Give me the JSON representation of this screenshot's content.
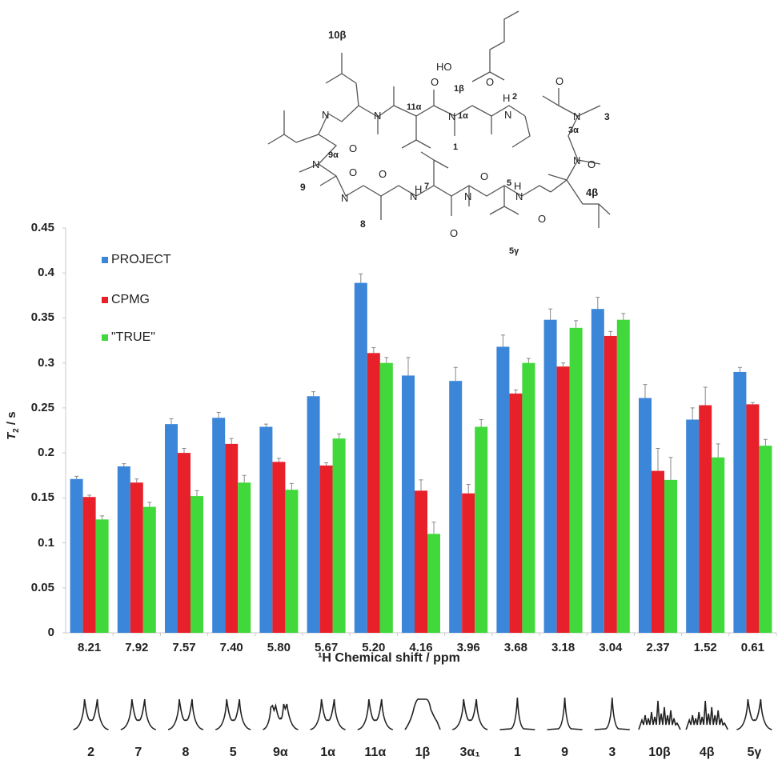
{
  "figure": {
    "molecule_labels": [
      "10β",
      "11α",
      "1β",
      "1α",
      "H2",
      "3",
      "3α",
      "1",
      "9α",
      "9",
      "8",
      "7",
      "5",
      "4β",
      "5γ",
      "HO"
    ]
  },
  "chart_data": {
    "type": "bar",
    "title": "",
    "xlabel": "¹H Chemical shift / ppm",
    "ylabel": "T₂ / s",
    "ylim": [
      0,
      0.45
    ],
    "yticks": [
      "0",
      "0.05",
      "0.1",
      "0.15",
      "0.2",
      "0.25",
      "0.3",
      "0.35",
      "0.4",
      "0.45"
    ],
    "grid": false,
    "legend_position": "upper-left",
    "categories": [
      "8.21",
      "7.92",
      "7.57",
      "7.40",
      "5.80",
      "5.67",
      "5.20",
      "4.16",
      "3.96",
      "3.68",
      "3.18",
      "3.04",
      "2.37",
      "1.52",
      "0.61"
    ],
    "series": [
      {
        "name": "PROJECT",
        "color": "#3b86d8",
        "values": [
          0.171,
          0.185,
          0.232,
          0.239,
          0.229,
          0.263,
          0.389,
          0.286,
          0.28,
          0.318,
          0.348,
          0.36,
          0.261,
          0.237,
          0.29
        ],
        "errors": [
          0.003,
          0.003,
          0.006,
          0.006,
          0.003,
          0.005,
          0.01,
          0.02,
          0.015,
          0.013,
          0.012,
          0.013,
          0.015,
          0.013,
          0.005
        ]
      },
      {
        "name": "CPMG",
        "color": "#e8202a",
        "values": [
          0.151,
          0.167,
          0.2,
          0.21,
          0.19,
          0.186,
          0.311,
          0.158,
          0.155,
          0.266,
          0.296,
          0.33,
          0.18,
          0.253,
          0.254
        ],
        "errors": [
          0.002,
          0.004,
          0.005,
          0.006,
          0.004,
          0.003,
          0.006,
          0.012,
          0.01,
          0.004,
          0.004,
          0.005,
          0.025,
          0.02,
          0.002
        ]
      },
      {
        "name": "\"TRUE\"",
        "color": "#40d83a",
        "values": [
          0.126,
          0.14,
          0.152,
          0.167,
          0.159,
          0.216,
          0.3,
          0.11,
          0.229,
          0.3,
          0.339,
          0.348,
          0.17,
          0.195,
          0.208
        ],
        "errors": [
          0.004,
          0.005,
          0.006,
          0.008,
          0.007,
          0.005,
          0.006,
          0.013,
          0.008,
          0.005,
          0.008,
          0.007,
          0.025,
          0.015,
          0.007
        ]
      }
    ],
    "annotations": {
      "peak_assignments": [
        "2",
        "7",
        "8",
        "5",
        "9α",
        "1α",
        "11α",
        "1β",
        "3α₁",
        "1",
        "9",
        "3",
        "10β",
        "4β",
        "5γ"
      ],
      "peak_shapes": [
        "doublet",
        "doublet",
        "doublet",
        "doublet",
        "dd",
        "doublet",
        "doublet",
        "broad",
        "doublet",
        "singlet",
        "singlet",
        "singlet",
        "multiplet",
        "multiplet",
        "doublet"
      ]
    }
  }
}
